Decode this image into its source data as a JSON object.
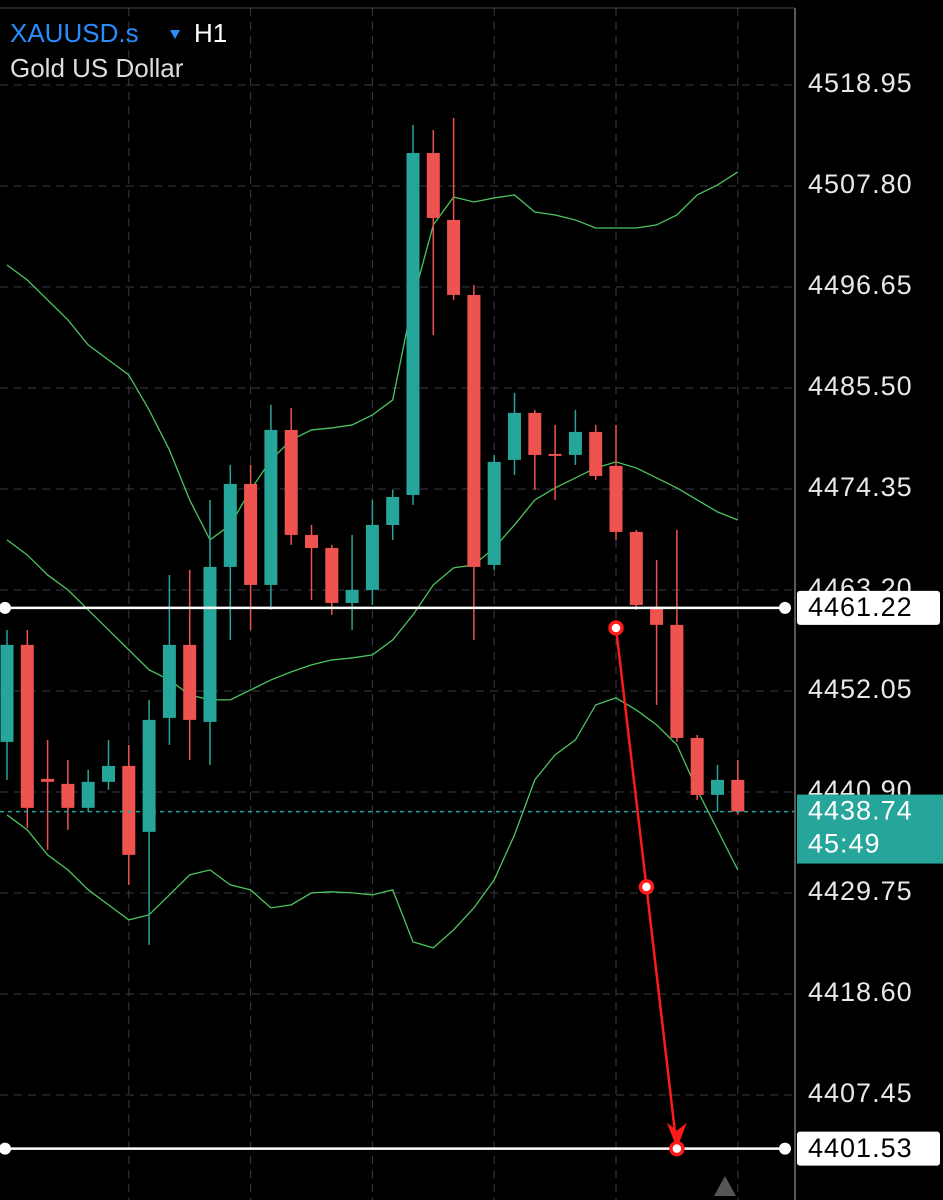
{
  "chart_data": {
    "type": "candlestick",
    "symbol": "XAUUSD.s",
    "timeframe": "H1",
    "title": "Gold US Dollar",
    "up_color": "#26a69a",
    "down_color": "#ef5350",
    "ylim": [
      4395.86,
      4528.33
    ],
    "yticks": [
      4518.95,
      {
        "value": 4507.8,
        "label": "4507.80"
      },
      4496.65,
      {
        "value": 4485.5,
        "label": "4485.50"
      },
      4474.35,
      {
        "value": 4463.2,
        "label": "4463.20"
      },
      4452.05,
      {
        "value": 4440.9,
        "label": "4440.90"
      },
      4429.75,
      {
        "value": 4418.6,
        "label": "4418.60"
      },
      4407.45
    ],
    "grid": true,
    "candles": {
      "open": [
        4446.43,
        4457.14,
        4442.35,
        4441.8,
        4439.15,
        4442.02,
        4443.78,
        4436.5,
        4449.08,
        4457.14,
        4448.64,
        4465.75,
        4474.91,
        4463.76,
        4480.87,
        4469.28,
        4467.84,
        4461.77,
        4463.21,
        4470.38,
        4473.69,
        4511.44,
        4504.05,
        4495.77,
        4465.97,
        4477.56,
        4482.75,
        4478.22,
        4478.11,
        4480.65,
        4476.9,
        4469.61,
        4461.33,
        4459.35,
        4446.87,
        4440.58,
        4442.24
      ],
      "high": [
        4458.79,
        4458.79,
        4446.65,
        4444.44,
        4443.34,
        4446.65,
        4446.1,
        4451.07,
        4464.86,
        4465.42,
        4473.14,
        4477.01,
        4477.01,
        4483.63,
        4483.3,
        4470.38,
        4468.18,
        4469.28,
        4473.14,
        4474.25,
        4514.53,
        4513.98,
        4515.31,
        4496.87,
        4478.11,
        4484.95,
        4483.08,
        4481.42,
        4483.08,
        4481.42,
        4481.42,
        4469.83,
        4466.52,
        4469.83,
        4447.2,
        4443.89,
        4444.44
      ],
      "low": [
        4442.24,
        4436.94,
        4434.51,
        4436.72,
        4438.71,
        4441.13,
        4430.65,
        4424.03,
        4446.1,
        4444.44,
        4443.89,
        4457.69,
        4458.79,
        4461.0,
        4468.18,
        4462.1,
        4460.45,
        4458.79,
        4461.55,
        4468.73,
        4472.59,
        4491.35,
        4495.22,
        4457.69,
        4465.42,
        4475.9,
        4474.25,
        4473.14,
        4477.01,
        4475.35,
        4468.73,
        4461.0,
        4450.52,
        4446.43,
        4440.03,
        4438.71,
        4438.37
      ],
      "close": [
        4457.14,
        4439.15,
        4442.02,
        4439.15,
        4442.02,
        4443.78,
        4433.96,
        4448.86,
        4457.14,
        4448.86,
        4465.75,
        4474.91,
        4463.76,
        4480.87,
        4469.28,
        4467.84,
        4461.77,
        4463.21,
        4470.38,
        4473.47,
        4511.44,
        4504.27,
        4495.77,
        4465.75,
        4477.34,
        4482.75,
        4478.11,
        4478.0,
        4480.65,
        4475.79,
        4469.61,
        4461.55,
        4459.35,
        4446.87,
        4440.58,
        4442.24,
        4438.74
      ]
    },
    "bands": [
      {
        "color": "#4cc460",
        "values": [
          4499.08,
          4497.42,
          4495.22,
          4493.01,
          4490.25,
          4488.59,
          4486.94,
          4483.08,
          4478.66,
          4473.14,
          4468.73,
          4470.38,
          4474.25,
          4477.56,
          4479.76,
          4480.87,
          4481.09,
          4481.42,
          4482.52,
          4484.18,
          4495.22,
          4503.5,
          4506.59,
          4506.03,
          4506.48,
          4506.81,
          4504.93,
          4504.6,
          4504.05,
          4503.16,
          4503.16,
          4503.16,
          4503.5,
          4504.6,
          4506.81,
          4507.91,
          4509.35
        ]
      },
      {
        "color": "#4cc460",
        "values": [
          4468.73,
          4467.07,
          4464.86,
          4463.21,
          4461.0,
          4458.79,
          4456.59,
          4454.38,
          4453.27,
          4451.62,
          4451.07,
          4451.07,
          4452.17,
          4453.27,
          4454.16,
          4454.93,
          4455.48,
          4455.7,
          4456.03,
          4457.69,
          4460.45,
          4463.76,
          4465.64,
          4465.97,
          4467.84,
          4470.38,
          4473.14,
          4474.47,
          4475.57,
          4476.67,
          4477.34,
          4476.67,
          4475.57,
          4474.47,
          4473.14,
          4471.82,
          4470.93
        ]
      },
      {
        "color": "#4cc460",
        "values": [
          4438.37,
          4436.72,
          4433.96,
          4432.3,
          4430.1,
          4428.44,
          4426.78,
          4427.34,
          4429.54,
          4431.75,
          4432.3,
          4430.65,
          4430.1,
          4428.11,
          4428.44,
          4429.76,
          4429.88,
          4429.76,
          4429.54,
          4430.1,
          4424.36,
          4423.69,
          4425.68,
          4428.11,
          4431.2,
          4436.17,
          4442.24,
          4445.0,
          4446.65,
          4450.52,
          4451.29,
          4449.96,
          4448.31,
          4446.1,
          4441.13,
          4436.72,
          4432.3
        ]
      }
    ],
    "price_lines": [
      4461.22,
      4401.53
    ],
    "last_price": 4438.74,
    "countdown": "45:49",
    "projection": {
      "color": "#ff1a1a",
      "x": [
        30,
        31.5,
        33
      ],
      "values": [
        4459.01,
        4430.43,
        4401.53
      ]
    }
  }
}
